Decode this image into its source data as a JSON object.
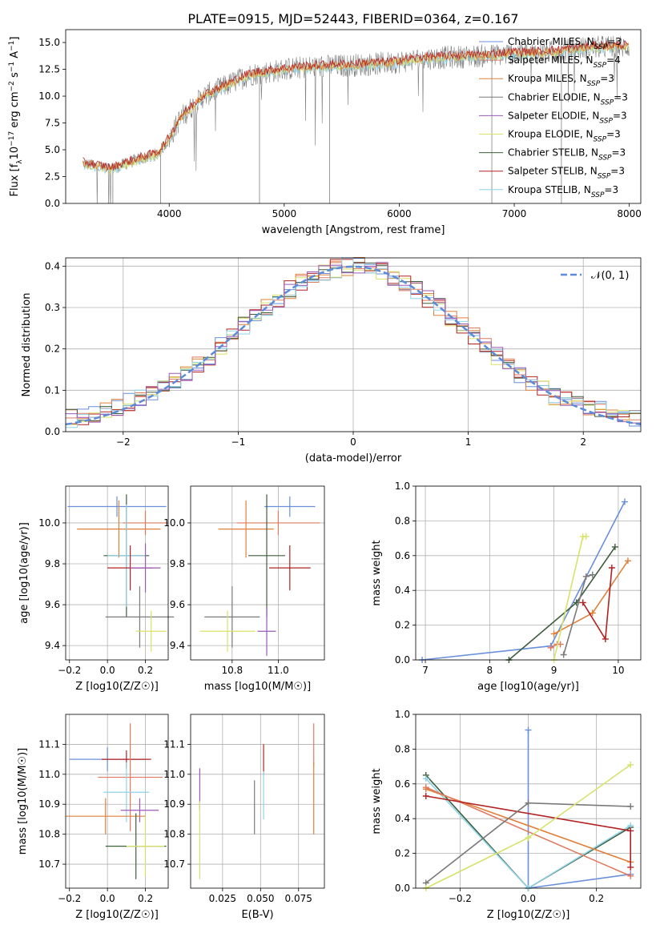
{
  "page_title": "PLATE=0915, MJD=52443, FIBERID=0364, z=0.167",
  "colors": {
    "chabrier_miles": "#6a8fdc",
    "salpeter_miles": "#e07a5f",
    "kroupa_miles": "#e0803a",
    "chabrier_elodie": "#7a7a7a",
    "salpeter_elodie": "#9b59b6",
    "kroupa_elodie": "#d8e26a",
    "chabrier_stelib": "#3e5f3e",
    "salpeter_stelib": "#b22222",
    "kroupa_stelib": "#8fd3e8",
    "gaussian": "#5b8bd9",
    "grid": "#b0b0b0"
  },
  "chart_data": [
    {
      "type": "line",
      "title": "PLATE=0915, MJD=52443, FIBERID=0364, z=0.167",
      "xlabel": "wavelength [Angstrom, rest frame]",
      "ylabel": "Flux [f_λ 10^-17 erg cm^-2 s^-1 A^-1]",
      "xlim": [
        3100,
        8100
      ],
      "ylim": [
        0,
        16.2
      ],
      "xticks": [
        4000,
        5000,
        6000,
        7000,
        8000
      ],
      "yticks": [
        0.0,
        2.5,
        5.0,
        7.5,
        10.0,
        12.5,
        15.0
      ],
      "grid": false,
      "legend_position": "upper right",
      "legend": [
        "Chabrier MILES, N_SSP=3",
        "Salpeter MILES, N_SSP=4",
        "Kroupa MILES, N_SSP=3",
        "Chabrier ELODIE, N_SSP=3",
        "Salpeter ELODIE, N_SSP=3",
        "Kroupa ELODIE, N_SSP=3",
        "Chabrier STELIB, N_SSP=3",
        "Salpeter STELIB, N_SSP=3",
        "Kroupa STELIB, N_SSP=3"
      ],
      "continuum": {
        "x": [
          3250,
          3400,
          3500,
          3600,
          3700,
          3800,
          3900,
          4000,
          4100,
          4200,
          4300,
          4400,
          4500,
          4600,
          4700,
          4800,
          4900,
          5000,
          5200,
          5400,
          5600,
          5800,
          6000,
          6200,
          6400,
          6600,
          6800,
          7000,
          7200,
          7400,
          7600,
          7800,
          8000
        ],
        "y": [
          3.7,
          3.4,
          3.2,
          3.6,
          4.0,
          4.3,
          4.6,
          6.0,
          8.0,
          9.0,
          10.0,
          10.5,
          11.0,
          11.5,
          12.0,
          12.2,
          12.3,
          12.5,
          12.7,
          12.8,
          12.9,
          13.0,
          13.2,
          13.5,
          13.6,
          13.7,
          13.8,
          14.0,
          14.0,
          14.2,
          14.5,
          14.6,
          14.6
        ]
      }
    },
    {
      "type": "line",
      "xlabel": "(data-model)/error",
      "ylabel": "Normed distribution",
      "xlim": [
        -2.5,
        2.5
      ],
      "ylim": [
        0,
        0.42
      ],
      "xticks": [
        -2,
        -1,
        0,
        1,
        2
      ],
      "yticks": [
        0.0,
        0.1,
        0.2,
        0.3,
        0.4
      ],
      "grid": true,
      "legend_position": "upper right",
      "legend": [
        "𝒩(0, 1)"
      ],
      "histogram_bin_width": 0.1,
      "series": [
        {
          "name": "Chabrier MILES",
          "values": [
            0.028,
            0.032,
            0.04,
            0.05,
            0.058,
            0.07,
            0.085,
            0.1,
            0.125,
            0.15,
            0.18,
            0.205,
            0.235,
            0.26,
            0.29,
            0.315,
            0.335,
            0.355,
            0.375,
            0.39,
            0.4,
            0.395,
            0.385,
            0.37,
            0.35,
            0.325,
            0.3,
            0.275,
            0.25,
            0.22,
            0.195,
            0.17,
            0.145,
            0.12,
            0.1,
            0.08,
            0.065,
            0.052,
            0.04,
            0.032
          ]
        },
        {
          "name": "Gaussian N(0,1)",
          "values": [
            0.0175,
            0.054,
            0.1295,
            0.242,
            0.3521,
            0.3989,
            0.3521,
            0.242,
            0.1295,
            0.054,
            0.0175
          ]
        }
      ]
    },
    {
      "type": "scatter",
      "xlabel": "Z [log10(Z/Z☉)]",
      "ylabel": "age [log10(age/yr)]",
      "xlim": [
        -0.22,
        0.32
      ],
      "ylim": [
        9.33,
        10.18
      ],
      "xticks": [
        -0.2,
        0.0,
        0.2
      ],
      "yticks": [
        9.4,
        9.6,
        9.8,
        10.0
      ],
      "grid": true,
      "points": [
        {
          "series": "Chabrier MILES",
          "x": 0.05,
          "y": 10.08,
          "xerr": 0.26,
          "yerr": 0.05
        },
        {
          "series": "Kroupa MILES",
          "x": 0.06,
          "y": 9.97,
          "xerr": 0.22,
          "yerr": 0.14
        },
        {
          "series": "Salpeter MILES",
          "x": 0.2,
          "y": 10.0,
          "xerr": 0.12,
          "yerr": 0.06
        },
        {
          "series": "Chabrier STELIB",
          "x": 0.1,
          "y": 9.84,
          "xerr": 0.12,
          "yerr": 0.3
        },
        {
          "series": "Kroupa STELIB",
          "x": 0.1,
          "y": 9.84,
          "xerr": 0.1,
          "yerr": 0.25
        },
        {
          "series": "Salpeter STELIB",
          "x": 0.12,
          "y": 9.78,
          "xerr": 0.12,
          "yerr": 0.11
        },
        {
          "series": "Salpeter ELODIE",
          "x": 0.2,
          "y": 9.78,
          "xerr": 0.08,
          "yerr": 0.12
        },
        {
          "series": "Chabrier ELODIE",
          "x": 0.17,
          "y": 9.54,
          "xerr": 0.18,
          "yerr": 0.15
        },
        {
          "series": "Kroupa ELODIE",
          "x": 0.23,
          "y": 9.47,
          "xerr": 0.08,
          "yerr": 0.1
        }
      ]
    },
    {
      "type": "scatter",
      "xlabel": "mass [log10(M/M☉)]",
      "ylabel": "",
      "xlim": [
        10.62,
        11.2
      ],
      "ylim": [
        9.33,
        10.18
      ],
      "xticks": [
        10.8,
        11.0
      ],
      "yticks": [
        9.4,
        9.6,
        9.8,
        10.0
      ],
      "grid": true,
      "points": [
        {
          "series": "Chabrier MILES",
          "x": 11.05,
          "y": 10.08,
          "xerr": 0.11,
          "yerr": 0.05
        },
        {
          "series": "Kroupa MILES",
          "x": 10.86,
          "y": 9.97,
          "xerr": 0.12,
          "yerr": 0.14
        },
        {
          "series": "Salpeter MILES",
          "x": 11.0,
          "y": 10.0,
          "xerr": 0.18,
          "yerr": 0.06
        },
        {
          "series": "Chabrier STELIB",
          "x": 10.95,
          "y": 9.84,
          "xerr": 0.08,
          "yerr": 0.3
        },
        {
          "series": "Salpeter STELIB",
          "x": 11.05,
          "y": 9.78,
          "xerr": 0.09,
          "yerr": 0.11
        },
        {
          "series": "Salpeter ELODIE",
          "x": 10.95,
          "y": 9.47,
          "xerr": 0.04,
          "yerr": 0.12
        },
        {
          "series": "Chabrier ELODIE",
          "x": 10.8,
          "y": 9.54,
          "xerr": 0.12,
          "yerr": 0.15
        },
        {
          "series": "Kroupa ELODIE",
          "x": 10.78,
          "y": 9.47,
          "xerr": 0.12,
          "yerr": 0.1
        }
      ]
    },
    {
      "type": "line",
      "xlabel": "age [log10(age/yr)]",
      "ylabel": "mass weight",
      "xlim": [
        6.85,
        10.35
      ],
      "ylim": [
        0,
        1.0
      ],
      "xticks": [
        7,
        8,
        9,
        10
      ],
      "yticks": [
        0.0,
        0.2,
        0.4,
        0.6,
        0.8,
        1.0
      ],
      "grid": true,
      "series": [
        {
          "name": "Chabrier MILES",
          "x": [
            6.95,
            8.95,
            10.1
          ],
          "y": [
            0.0,
            0.08,
            0.91
          ]
        },
        {
          "name": "Kroupa MILES",
          "x": [
            9.0,
            9.6,
            10.15
          ],
          "y": [
            0.15,
            0.27,
            0.57
          ]
        },
        {
          "name": "Salpeter MILES",
          "x": [
            8.95,
            9.05,
            9.1
          ],
          "y": [
            0.07,
            0.09,
            0.09
          ]
        },
        {
          "name": "Chabrier STELIB",
          "x": [
            8.3,
            9.35,
            9.95
          ],
          "y": [
            0.0,
            0.33,
            0.65
          ]
        },
        {
          "name": "Salpeter STELIB",
          "x": [
            9.45,
            9.8,
            9.9
          ],
          "y": [
            0.33,
            0.12,
            0.53
          ]
        },
        {
          "name": "Kroupa ELODIE",
          "x": [
            9.0,
            9.45,
            9.5
          ],
          "y": [
            0.0,
            0.71,
            0.71
          ]
        },
        {
          "name": "Chabrier ELODIE",
          "x": [
            9.15,
            9.5,
            9.6
          ],
          "y": [
            0.03,
            0.48,
            0.49
          ]
        }
      ]
    },
    {
      "type": "scatter",
      "xlabel": "Z [log10(Z/Z☉)]",
      "ylabel": "mass [log10(M/M☉)]",
      "xlim": [
        -0.22,
        0.32
      ],
      "ylim": [
        10.62,
        11.2
      ],
      "xticks": [
        -0.2,
        0.0,
        0.2
      ],
      "yticks": [
        10.7,
        10.8,
        10.9,
        11.0,
        11.1
      ],
      "grid": true,
      "points": [
        {
          "series": "Chabrier MILES",
          "x": 0.0,
          "y": 11.05,
          "xerr": 0.2,
          "yerr": 0.04
        },
        {
          "series": "Salpeter STELIB",
          "x": 0.1,
          "y": 11.05,
          "xerr": 0.13,
          "yerr": 0.03
        },
        {
          "series": "Salpeter MILES",
          "x": 0.12,
          "y": 10.99,
          "xerr": 0.17,
          "yerr": 0.18
        },
        {
          "series": "Kroupa STELIB",
          "x": 0.1,
          "y": 10.94,
          "xerr": 0.12,
          "yerr": 0.1
        },
        {
          "series": "Salpeter ELODIE",
          "x": 0.17,
          "y": 10.88,
          "xerr": 0.1,
          "yerr": 0.04
        },
        {
          "series": "Kroupa MILES",
          "x": -0.01,
          "y": 10.86,
          "xerr": 0.21,
          "yerr": 0.06
        },
        {
          "series": "Chabrier STELIB",
          "x": 0.15,
          "y": 10.76,
          "xerr": 0.16,
          "yerr": 0.11
        },
        {
          "series": "Kroupa ELODIE",
          "x": 0.2,
          "y": 10.76,
          "xerr": 0.1,
          "yerr": 0.1
        }
      ]
    },
    {
      "type": "scatter",
      "xlabel": "E(B-V)",
      "ylabel": "",
      "xlim": [
        0.004,
        0.092
      ],
      "ylim": [
        10.62,
        11.2
      ],
      "xticks": [
        0.025,
        0.05,
        0.075
      ],
      "xtick_labels": [
        "0.025",
        "0.050",
        "0.075"
      ],
      "yticks": [
        10.7,
        10.8,
        10.9,
        11.0,
        11.1
      ],
      "grid": true,
      "points": [
        {
          "series": "Salpeter ELODIE",
          "x": 0.01,
          "y": 10.95,
          "yerr": 0.07
        },
        {
          "series": "Kroupa ELODIE",
          "x": 0.01,
          "y": 10.78,
          "yerr": 0.13
        },
        {
          "series": "Chabrier ELODIE",
          "x": 0.046,
          "y": 10.89,
          "yerr": 0.09
        },
        {
          "series": "Salpeter STELIB",
          "x": 0.052,
          "y": 11.05,
          "yerr": 0.05
        },
        {
          "series": "Kroupa STELIB",
          "x": 0.052,
          "y": 10.93,
          "yerr": 0.08
        },
        {
          "series": "Salpeter MILES",
          "x": 0.085,
          "y": 11.1,
          "yerr": 0.07
        },
        {
          "series": "Kroupa MILES",
          "x": 0.085,
          "y": 10.92,
          "yerr": 0.12
        }
      ]
    },
    {
      "type": "line",
      "xlabel": "Z [log10(Z/Z☉)]",
      "ylabel": "mass weight",
      "xlim": [
        -0.33,
        0.33
      ],
      "ylim": [
        0,
        1.0
      ],
      "xticks": [
        -0.2,
        0.0,
        0.2
      ],
      "yticks": [
        0.0,
        0.2,
        0.4,
        0.6,
        0.8,
        1.0
      ],
      "grid": true,
      "series": [
        {
          "name": "Chabrier MILES",
          "x": [
            0.0,
            0.0,
            0.3
          ],
          "y": [
            0.91,
            0.0,
            0.08
          ]
        },
        {
          "name": "Chabrier STELIB",
          "x": [
            -0.3,
            0.0,
            0.3
          ],
          "y": [
            0.65,
            0.0,
            0.35
          ]
        },
        {
          "name": "Kroupa STELIB",
          "x": [
            -0.3,
            0.0,
            0.3
          ],
          "y": [
            0.63,
            0.0,
            0.36
          ]
        },
        {
          "name": "Kroupa MILES",
          "x": [
            -0.3,
            0.3
          ],
          "y": [
            0.57,
            0.15
          ]
        },
        {
          "name": "Salpeter MILES",
          "x": [
            -0.3,
            0.3
          ],
          "y": [
            0.58,
            0.07
          ]
        },
        {
          "name": "Salpeter STELIB",
          "x": [
            -0.3,
            0.3,
            0.3
          ],
          "y": [
            0.53,
            0.33,
            0.12
          ]
        },
        {
          "name": "Chabrier ELODIE",
          "x": [
            -0.3,
            0.0,
            0.3
          ],
          "y": [
            0.03,
            0.49,
            0.47
          ]
        },
        {
          "name": "Kroupa ELODIE",
          "x": [
            -0.3,
            0.0,
            0.3
          ],
          "y": [
            0.0,
            0.29,
            0.71
          ]
        }
      ]
    }
  ]
}
